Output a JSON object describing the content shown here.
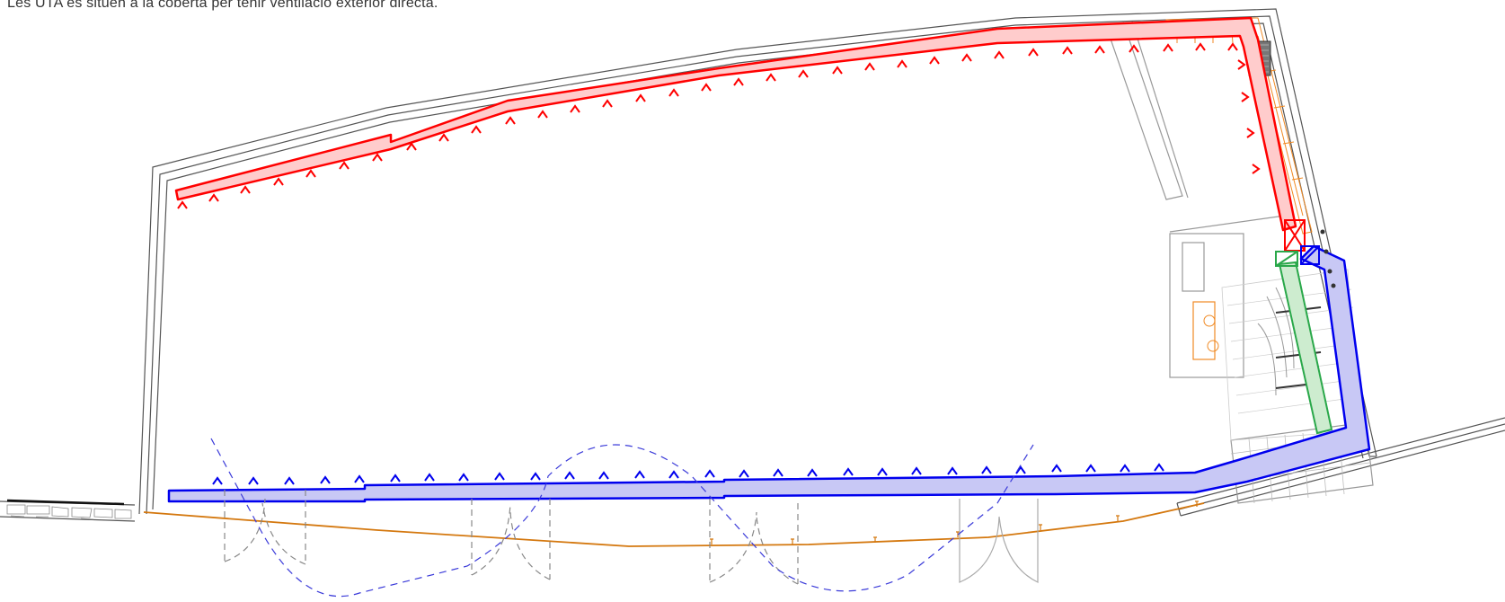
{
  "caption": "Les UTA es situen a la coberta per tenir ventilació exterior directa.",
  "plan": {
    "colors": {
      "extraction_duct": "#ff0000",
      "extraction_fill": "#ffcccc",
      "supply_duct": "#0000ee",
      "supply_fill": "#c8c8f5",
      "green_duct": "#2aa84a",
      "green_fill": "#cdeccf",
      "orange_element": "#f08a24",
      "facade_line": "#d4780f",
      "walls": "#555555",
      "gray_elements": "#999999",
      "dashed_door": "#888888",
      "dashed_arc": "#3b3bd9"
    }
  }
}
